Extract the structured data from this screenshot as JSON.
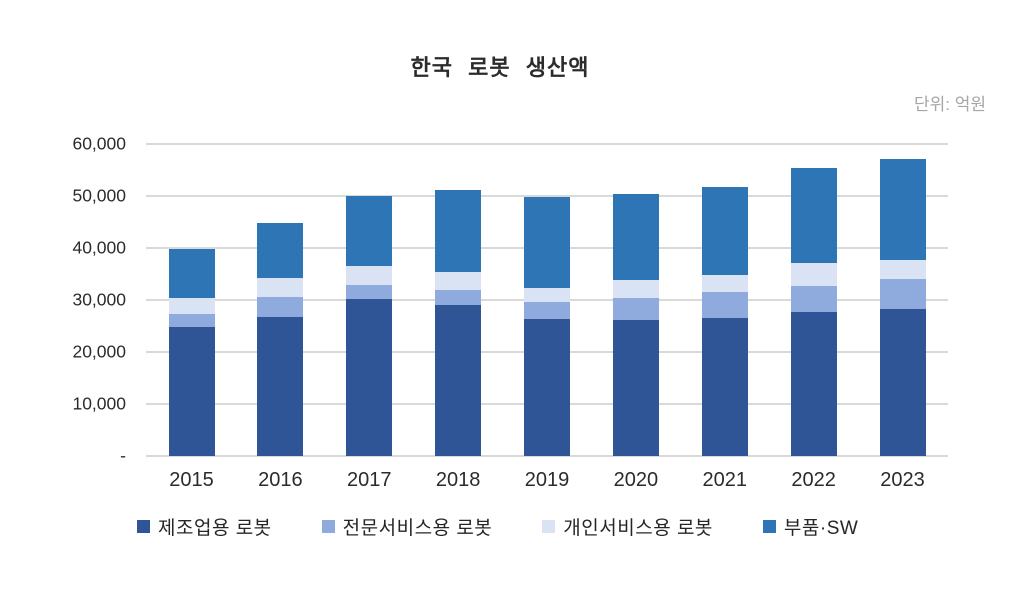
{
  "page": {
    "title": "한국 로봇 생산액",
    "unit_label": "단위: 억원"
  },
  "chart_data": {
    "type": "bar",
    "stacked": true,
    "title": "한국 로봇 생산액",
    "unit": "억원",
    "categories": [
      "2015",
      "2016",
      "2017",
      "2018",
      "2019",
      "2020",
      "2021",
      "2022",
      "2023"
    ],
    "series": [
      {
        "name": "제조업용 로봇",
        "color": "#2F5597",
        "values": [
          24800,
          26800,
          30200,
          29000,
          26300,
          26200,
          26600,
          27600,
          28300
        ]
      },
      {
        "name": "전문서비스용 로봇",
        "color": "#8FAADC",
        "values": [
          2500,
          3700,
          2600,
          2900,
          3400,
          4100,
          4900,
          5000,
          5700
        ]
      },
      {
        "name": "개인서비스용 로봇",
        "color": "#DAE3F3",
        "values": [
          3000,
          3700,
          3700,
          3400,
          2700,
          3500,
          3300,
          4500,
          3700
        ]
      },
      {
        "name": "부품·SW",
        "color": "#2E75B6",
        "values": [
          9500,
          10700,
          13500,
          15800,
          17400,
          16500,
          16900,
          18200,
          19400
        ]
      }
    ],
    "totals": [
      39800,
      44900,
      50000,
      51100,
      49800,
      50300,
      51700,
      55300,
      57100
    ],
    "xlabel": "",
    "ylabel": "",
    "ylim": [
      0,
      60000
    ],
    "yticks": [
      {
        "value": 60000,
        "label": "60,000"
      },
      {
        "value": 50000,
        "label": "50,000"
      },
      {
        "value": 40000,
        "label": "40,000"
      },
      {
        "value": 30000,
        "label": "30,000"
      },
      {
        "value": 20000,
        "label": "20,000"
      },
      {
        "value": 10000,
        "label": "10,000"
      },
      {
        "value": 0,
        "label": "-"
      }
    ],
    "grid": true,
    "legend_position": "bottom"
  },
  "colors": {
    "gridline": "#D9D9D9",
    "axis_text": "#2B2B2B",
    "unit_text": "#A6A6A6",
    "background": "#FFFFFF"
  }
}
